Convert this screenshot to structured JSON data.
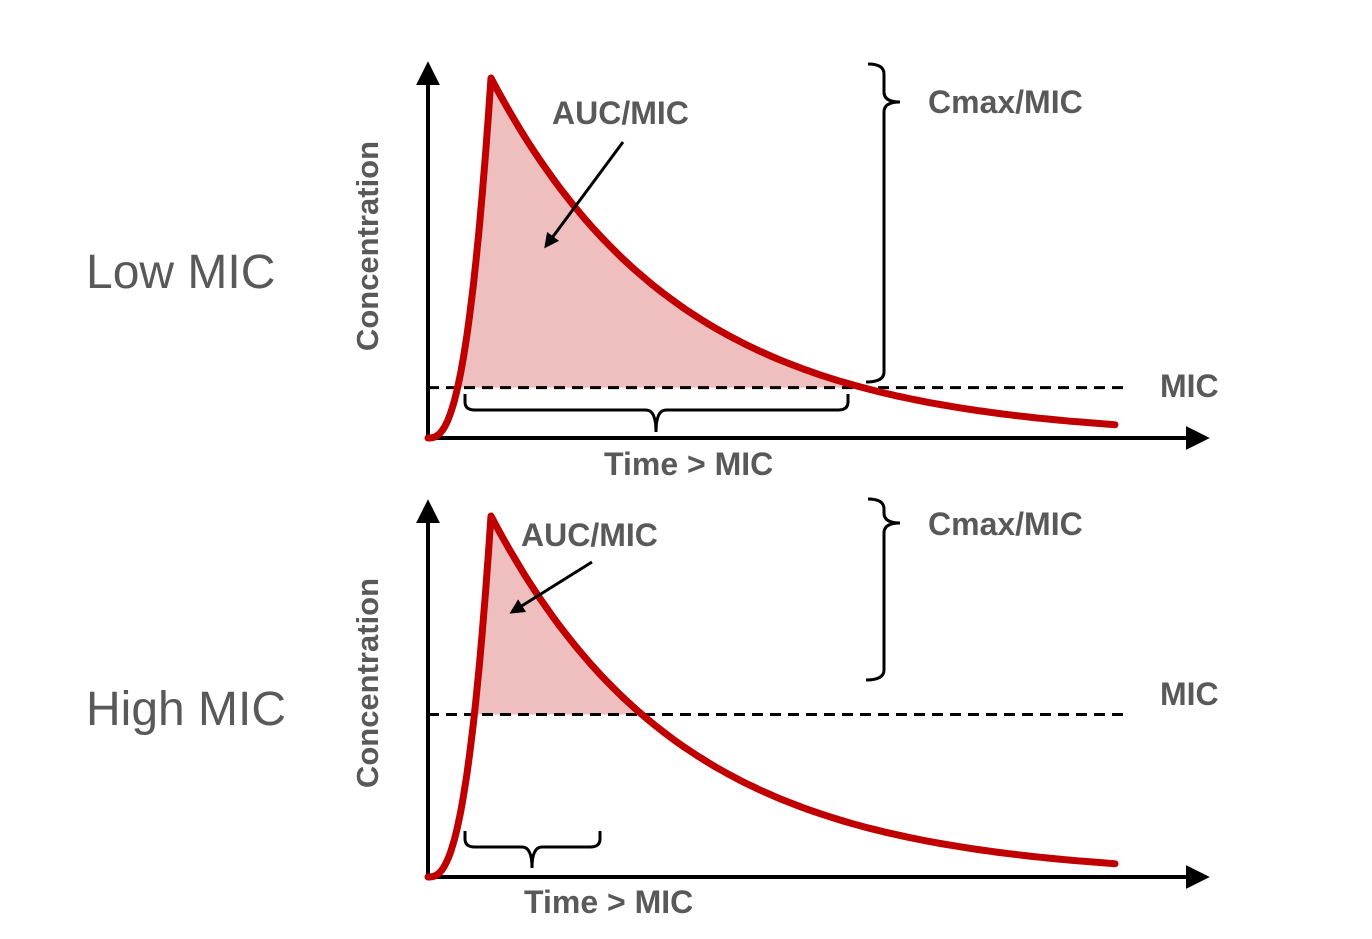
{
  "colors": {
    "curve": "#c00000",
    "auc_fill": "#efbfbf",
    "axis": "#000000",
    "text": "#595959"
  },
  "panels": [
    {
      "case_label": "Low MIC",
      "y_axis_label": "Concentration",
      "auc_label": "AUC/MIC",
      "cmax_label": "Cmax/MIC",
      "mic_label": "MIC",
      "time_label": "Time > MIC",
      "mic_level": 0.14
    },
    {
      "case_label": "High MIC",
      "y_axis_label": "Concentration",
      "auc_label": "AUC/MIC",
      "cmax_label": "Cmax/MIC",
      "mic_label": "MIC",
      "time_label": "Time > MIC",
      "mic_level": 0.45
    }
  ]
}
